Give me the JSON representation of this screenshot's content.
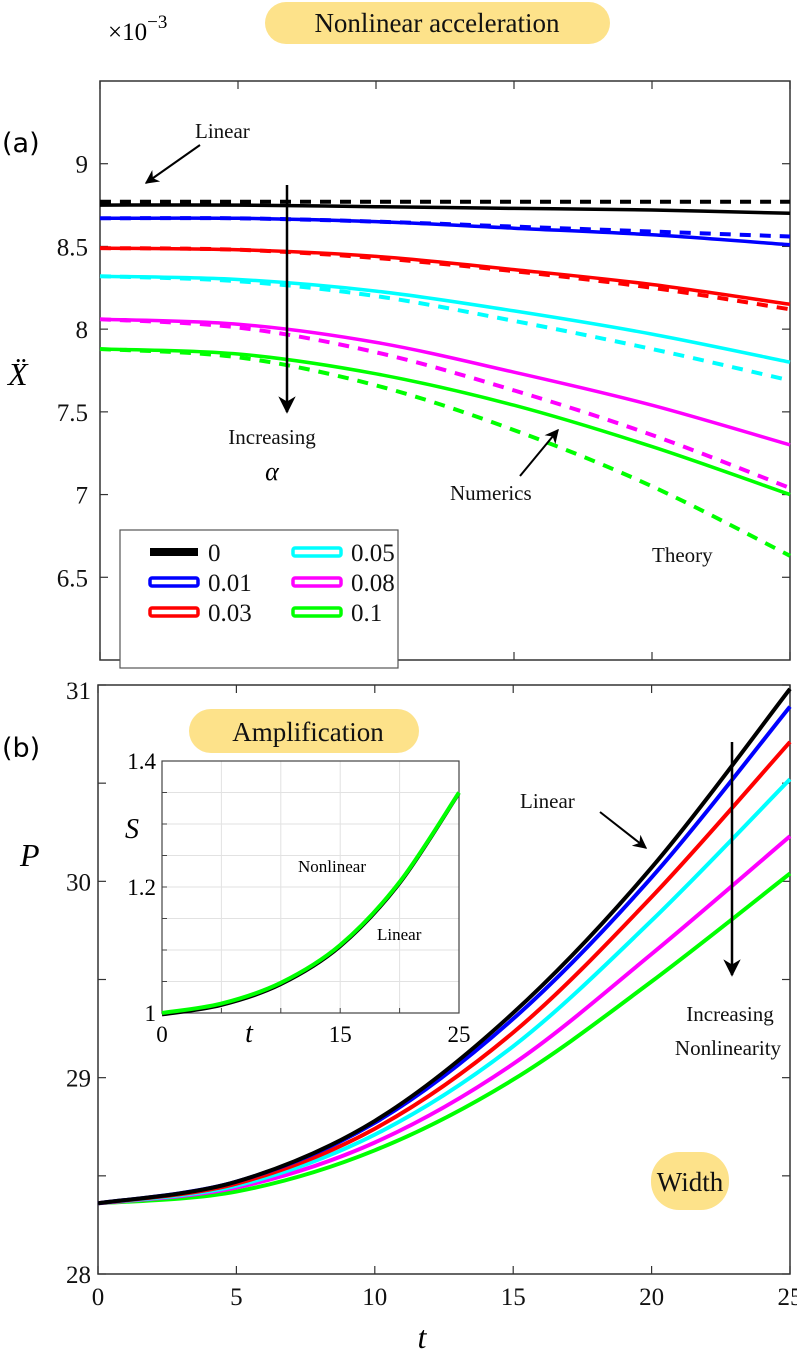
{
  "figure": {
    "panel_a": {
      "tag": "(a)",
      "title": "Nonlinear acceleration",
      "exponent_base": "×10",
      "exponent_power": "−3",
      "annotations": {
        "linear": "Linear",
        "increasing": "Increasing",
        "alpha": "α",
        "numerics": "Numerics",
        "theory": "Theory"
      }
    },
    "panel_b": {
      "tag": "(b)",
      "inset_title": "Amplification",
      "badge": "Width",
      "annotations": {
        "linear": "Linear",
        "increasing": "Increasing",
        "nonlinearity": "Nonlinearity",
        "inset_nonlinear": "Nonlinear",
        "inset_linear": "Linear"
      }
    }
  },
  "chart_data": [
    {
      "type": "line",
      "title": "Nonlinear acceleration",
      "xlabel": "",
      "ylabel": "Ẍ",
      "y_multiplier": "×10^-3",
      "xlim": [
        0,
        25
      ],
      "ylim": [
        6.0,
        9.5
      ],
      "xticks": [
        0,
        5,
        10,
        15,
        20,
        25
      ],
      "yticks": [
        "6.5",
        "7",
        "7.5",
        "8",
        "8.5",
        "9"
      ],
      "grid": false,
      "legend_placement": "bottom-left",
      "x": [
        0,
        5,
        10,
        15,
        20,
        25
      ],
      "series": [
        {
          "name": "0",
          "color": "#000000",
          "numerics": [
            8.75,
            8.75,
            8.74,
            8.73,
            8.72,
            8.7
          ],
          "theory": [
            8.77,
            8.77,
            8.77,
            8.77,
            8.77,
            8.77
          ]
        },
        {
          "name": "0.01",
          "color": "#0000ff",
          "numerics": [
            8.67,
            8.67,
            8.65,
            8.61,
            8.57,
            8.51
          ],
          "theory": [
            8.67,
            8.67,
            8.65,
            8.62,
            8.59,
            8.56
          ]
        },
        {
          "name": "0.03",
          "color": "#ff0000",
          "numerics": [
            8.49,
            8.48,
            8.44,
            8.36,
            8.27,
            8.15
          ],
          "theory": [
            8.49,
            8.48,
            8.43,
            8.35,
            8.25,
            8.12
          ]
        },
        {
          "name": "0.05",
          "color": "#00ffff",
          "numerics": [
            8.32,
            8.3,
            8.23,
            8.11,
            7.97,
            7.8
          ],
          "theory": [
            8.32,
            8.29,
            8.2,
            8.05,
            7.88,
            7.69
          ]
        },
        {
          "name": "0.08",
          "color": "#ff00ff",
          "numerics": [
            8.06,
            8.03,
            7.92,
            7.74,
            7.54,
            7.3
          ],
          "theory": [
            8.06,
            8.01,
            7.86,
            7.63,
            7.36,
            7.04
          ]
        },
        {
          "name": "0.1",
          "color": "#00ff00",
          "numerics": [
            7.88,
            7.85,
            7.73,
            7.54,
            7.29,
            7.0
          ],
          "theory": [
            7.88,
            7.83,
            7.66,
            7.39,
            7.05,
            6.63
          ]
        }
      ]
    },
    {
      "type": "line",
      "title": "",
      "xlabel": "t",
      "ylabel": "P",
      "xlim": [
        0,
        25
      ],
      "ylim": [
        28,
        31
      ],
      "xticks": [
        "0",
        "5",
        "10",
        "15",
        "20",
        "25"
      ],
      "yticks": [
        "28",
        "29",
        "30",
        "31"
      ],
      "grid": false,
      "x": [
        0,
        5,
        10,
        15,
        20,
        25
      ],
      "series": [
        {
          "color": "#000000",
          "values": [
            28.36,
            28.47,
            28.78,
            29.33,
            30.07,
            30.98
          ]
        },
        {
          "color": "#0000ff",
          "values": [
            28.36,
            28.47,
            28.77,
            29.3,
            30.02,
            30.89
          ]
        },
        {
          "color": "#ff0000",
          "values": [
            28.36,
            28.46,
            28.74,
            29.23,
            29.92,
            30.71
          ]
        },
        {
          "color": "#00ffff",
          "values": [
            28.36,
            28.45,
            28.71,
            29.16,
            29.8,
            30.52
          ]
        },
        {
          "color": "#ff00ff",
          "values": [
            28.36,
            28.44,
            28.67,
            29.07,
            29.63,
            30.23
          ]
        },
        {
          "color": "#00ff00",
          "values": [
            28.36,
            28.42,
            28.63,
            28.99,
            29.49,
            30.04
          ]
        }
      ]
    },
    {
      "type": "line",
      "title": "Amplification",
      "xlabel": "t",
      "ylabel": "S",
      "xlim": [
        0,
        25
      ],
      "ylim": [
        1.0,
        1.4
      ],
      "xticks": [
        "0",
        "15",
        "25"
      ],
      "yticks": [
        "1",
        "1.2",
        "1.4"
      ],
      "grid": true,
      "x": [
        0,
        5,
        10,
        15,
        20,
        25
      ],
      "series": [
        {
          "name": "Linear",
          "color": "#000000",
          "values": [
            0.997,
            1.012,
            1.045,
            1.105,
            1.205,
            1.348
          ]
        },
        {
          "name": "Nonlinear",
          "color": "#00ff00",
          "values": [
            1.0,
            1.015,
            1.048,
            1.108,
            1.208,
            1.35
          ]
        }
      ]
    }
  ]
}
